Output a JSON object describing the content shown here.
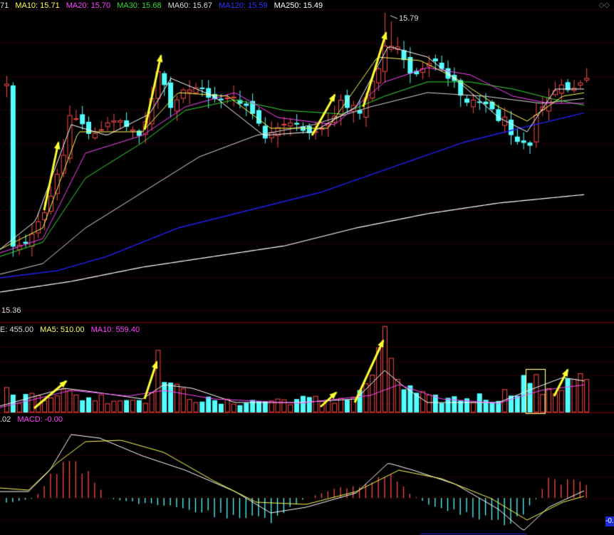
{
  "colors": {
    "up": "#ff4a4a",
    "down": "#54ffff",
    "ma5": "#ffffff",
    "ma10": "#ffff55",
    "ma20": "#ff44ff",
    "ma30": "#33dd33",
    "ma60": "#d9d9d9",
    "ma120": "#2020ee",
    "ma250": "#ffffff",
    "arrow": "#ffff33",
    "grid": "#800000"
  },
  "price_panel": {
    "legend_prefix": "71",
    "ma10_label": "MA10: 15.71",
    "ma20_label": "MA20: 15.70",
    "ma30_label": "MA30: 15.68",
    "ma60_label": "MA60: 15.67",
    "ma120_label": "MA120: 15.59",
    "ma250_label": "MA250: 15.49",
    "high_label": "15.79",
    "low_label": "15.36"
  },
  "volume_panel": {
    "vol_label": "E: 455.00",
    "ma5_label": "MA5: 510.00",
    "ma10_label": "MA10: 559.40"
  },
  "macd_panel": {
    "prefix_label": ".02",
    "macd_label": "MACD: -0.00",
    "edge_label": "-0."
  },
  "chart_data": {
    "type": "candlestick",
    "series_names": [
      "MA10",
      "MA20",
      "MA30",
      "MA60",
      "MA120",
      "MA250",
      "MA5",
      "MACD"
    ],
    "price_range": [
      15.36,
      15.79
    ],
    "note_marks": "yellow arrows mark surges in price and volume"
  }
}
